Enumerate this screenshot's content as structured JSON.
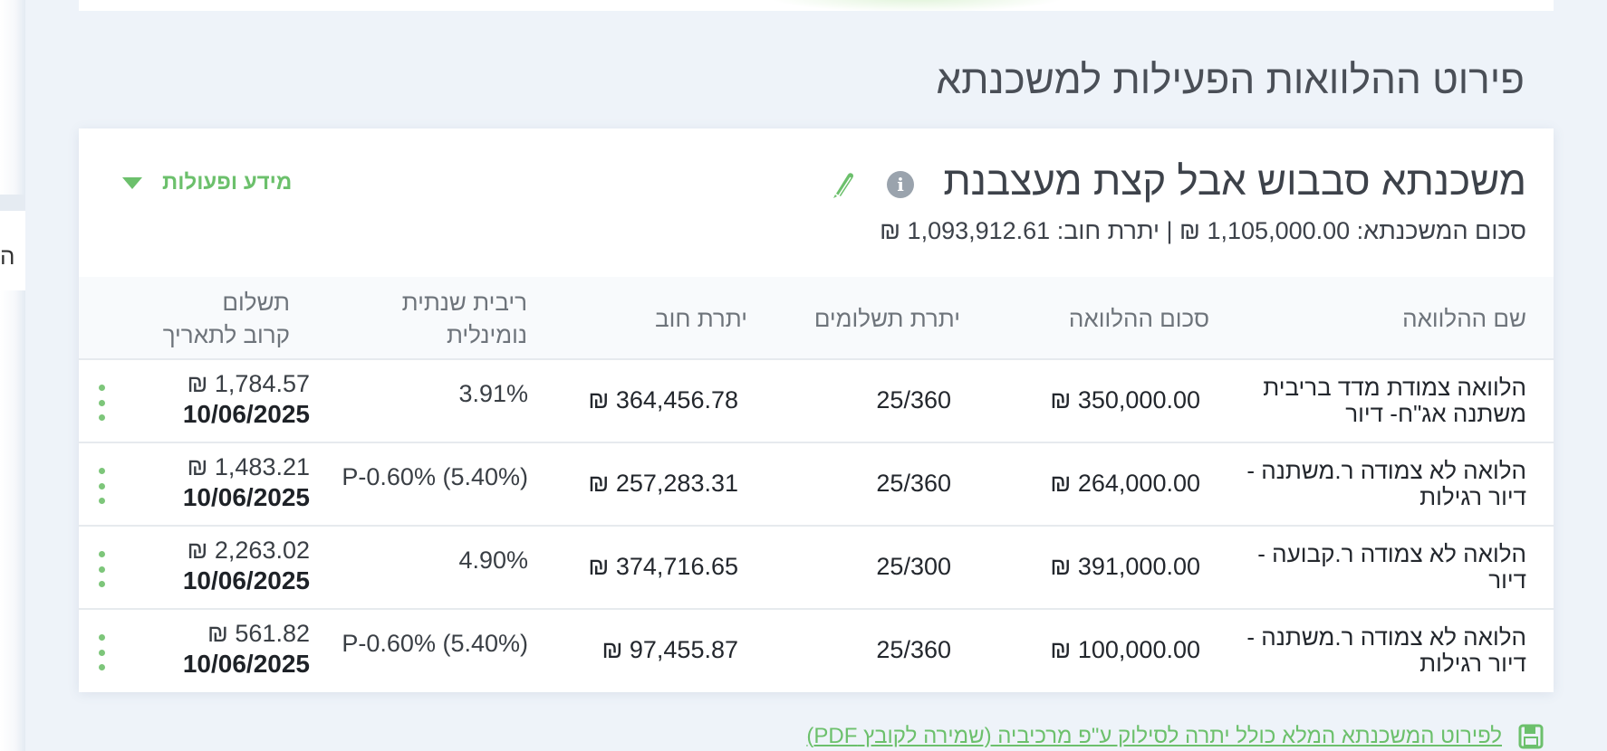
{
  "left_panel": {
    "edge_char": "ה"
  },
  "section_title": "פירוט ההלוואות הפעילות למשכנתא",
  "mortgage": {
    "name": "משכנתא סבבוש אבל קצת מעצבנת",
    "summary": "סכום המשכנתא: 1,105,000.00 ₪ | יתרת חוב: 1,093,912.61 ₪",
    "info_icon_char": "i",
    "actions_label": "מידע ופעולות"
  },
  "table": {
    "headers": {
      "name": "שם ההלוואה",
      "amount": "סכום ההלוואה",
      "payments": "יתרת תשלומים",
      "balance": "יתרת חוב",
      "rate_line1": "ריבית שנתית",
      "rate_line2": "נומינלית",
      "next_line1": "תשלום",
      "next_line2": "קרוב לתאריך"
    },
    "rows": [
      {
        "name_line1": "הלוואה צמודת מדד בריבית",
        "name_line2": "משתנה אג\"ח- דיור",
        "amount": "350,000.00 ₪",
        "payments": "25/360",
        "balance": "364,456.78 ₪",
        "rate": "3.91%",
        "next_amount": "1,784.57 ₪",
        "next_date": "10/06/2025"
      },
      {
        "name_line1": "הלואה לא צמודה ר.משתנה -",
        "name_line2": "דיור רגילות",
        "amount": "264,000.00 ₪",
        "payments": "25/360",
        "balance": "257,283.31 ₪",
        "rate": "P-0.60% (5.40%)",
        "next_amount": "1,483.21 ₪",
        "next_date": "10/06/2025"
      },
      {
        "name_line1": "הלואה לא צמודה ר.קבועה -",
        "name_line2": "דיור",
        "amount": "391,000.00 ₪",
        "payments": "25/300",
        "balance": "374,716.65 ₪",
        "rate": "4.90%",
        "next_amount": "2,263.02 ₪",
        "next_date": "10/06/2025"
      },
      {
        "name_line1": "הלואה לא צמודה ר.משתנה -",
        "name_line2": "דיור רגילות",
        "amount": "100,000.00 ₪",
        "payments": "25/360",
        "balance": "97,455.87 ₪",
        "rate": "P-0.60% (5.40%)",
        "next_amount": "561.82 ₪",
        "next_date": "10/06/2025"
      }
    ]
  },
  "footer_link": "לפירוט המשכנתא המלא כולל יתרה לסילוק ע\"פ מרכיביה (שמירה לקובץ PDF)",
  "colors": {
    "accent_green": "#6cc06c",
    "background": "#eef3f9",
    "card": "#ffffff"
  }
}
